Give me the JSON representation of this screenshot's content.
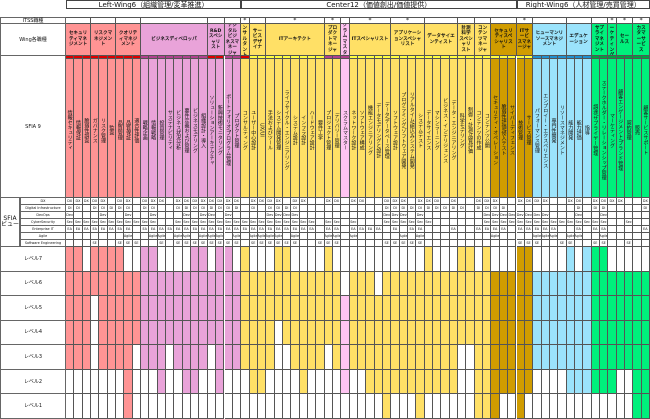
{
  "wings": [
    {
      "label": "Left-Wing6（組織管理/変革推進）",
      "from": 0,
      "to": 21
    },
    {
      "label": "Center12（価値創出/価値提供）",
      "from": 21,
      "to": 54
    },
    {
      "label": "Right-Wing6（人材管理/売買管理）",
      "from": 54,
      "to": 70
    }
  ],
  "row_labels": {
    "itss": "ITSS職種",
    "wing_roles": "Wing各職種",
    "sfia9": "SFIA 9",
    "sfia_view": "SFIA ビュー",
    "levels": [
      "レベル7",
      "レベル6",
      "レベル5",
      "レベル4",
      "レベル3",
      "レベル2",
      "レベル1"
    ]
  },
  "views": [
    {
      "name": "DX",
      "code": "DX"
    },
    {
      "name": "Digital Infrastructure",
      "code": "DI"
    },
    {
      "name": "DevOps",
      "code": "Dev"
    },
    {
      "name": "CyberSecurity",
      "code": "Sec"
    },
    {
      "name": "Enterprise IT",
      "code": "EA"
    },
    {
      "name": "Agile",
      "code": "Agile"
    },
    {
      "name": "Software Engineering",
      "code": "SE"
    }
  ],
  "itss_marker": "*",
  "colors": {
    "red": "#ff9494",
    "pink": "#e9a3d9",
    "yellow": "#ffe066",
    "lightpink": "#ffc4f2",
    "gold": "#d09c00",
    "blue": "#9be3fb",
    "green": "#00f07c",
    "strip_red": "#e00000",
    "strip_yellow": "#ffff40",
    "strip_purple": "#b0408f",
    "strip_blue": "#2090d0",
    "strip_green": "#00a040"
  },
  "groups": [
    {
      "label": "セキュリティマネジメント",
      "cols": 3,
      "color": "red",
      "strip": "strip_red",
      "itss": false
    },
    {
      "label": "リスクマネジメント",
      "cols": 3,
      "color": "red",
      "strip": "strip_red",
      "itss": false
    },
    {
      "label": "クオリティマネジメント",
      "cols": 3,
      "color": "red",
      "strip": "strip_red",
      "itss": false
    },
    {
      "label": "ビジネスディベロッパ",
      "cols": 8,
      "color": "pink",
      "strip": "strip_purple",
      "itss": false
    },
    {
      "label": "R&Dスペシャリスト",
      "cols": 2,
      "color": "pink",
      "strip": "strip_red",
      "itss": false
    },
    {
      "label": "デジタルビジネスマネージャ",
      "cols": 2,
      "color": "pink",
      "strip": "strip_purple",
      "itss": false
    },
    {
      "label": "コンサルタント",
      "cols": 1,
      "color": "yellow",
      "strip": "strip_red",
      "itss": true
    },
    {
      "label": "サービスデザイナ",
      "cols": 2,
      "color": "yellow",
      "strip": "strip_yellow",
      "itss": false
    },
    {
      "label": "ITアーキテクト",
      "cols": 7,
      "color": "yellow",
      "strip": "strip_yellow",
      "itss": true
    },
    {
      "label": "プロダクトマネージャ",
      "cols": 2,
      "color": "yellow",
      "strip": "strip_purple",
      "itss": true
    },
    {
      "label": "スクラムマスター",
      "cols": 1,
      "color": "lightpink",
      "strip": "strip_purple",
      "itss": false
    },
    {
      "label": "ITスペシャリスト",
      "cols": 5,
      "color": "yellow",
      "strip": "strip_yellow",
      "itss": true
    },
    {
      "label": "アプリケーションスペシャリスト",
      "cols": 4,
      "color": "yellow",
      "strip": "strip_yellow",
      "itss": true
    },
    {
      "label": "データサイエンティスト",
      "cols": 4,
      "color": "yellow",
      "strip": "strip_yellow",
      "itss": false
    },
    {
      "label": "計測科学スペシャリスト",
      "cols": 2,
      "color": "yellow",
      "strip": "strip_yellow",
      "itss": false
    },
    {
      "label": "コンテンツマネージャ",
      "cols": 2,
      "color": "yellow",
      "strip": "strip_yellow",
      "itss": false
    },
    {
      "label": "セキュリティスペシャリスト",
      "cols": 3,
      "color": "gold",
      "strip": "strip_yellow",
      "itss": false
    },
    {
      "label": "ITサービスマネージャ",
      "cols": 2,
      "color": "gold",
      "strip": "strip_yellow",
      "itss": true
    },
    {
      "label": "ヒューマンリソースマネジメント",
      "cols": 4,
      "color": "blue",
      "strip": "strip_blue",
      "itss": false
    },
    {
      "label": "エデュケーション",
      "cols": 3,
      "color": "blue",
      "strip": "strip_blue",
      "itss": false
    },
    {
      "label": "サプライマネジメント",
      "cols": 2,
      "color": "green",
      "strip": "strip_green",
      "itss": false
    },
    {
      "label": "マーケティング",
      "cols": 1,
      "color": "green",
      "strip": "strip_green",
      "itss": true
    },
    {
      "label": "セールス",
      "cols": 2,
      "color": "green",
      "strip": "strip_green",
      "itss": true
    },
    {
      "label": "カスタマーサービス",
      "cols": 2,
      "color": "green",
      "strip": "strip_green",
      "itss": true
    }
  ],
  "skills": [
    {
      "name": "情報セキュリティ",
      "levels": [
        3,
        7
      ],
      "views": "1111100"
    },
    {
      "name": "情報保証",
      "levels": [
        3,
        7
      ],
      "views": "1101100"
    },
    {
      "name": "脆弱性調査",
      "levels": [
        3,
        6
      ],
      "views": "1001100"
    },
    {
      "name": "ガバナンス",
      "levels": [
        6,
        7
      ],
      "views": "1101101"
    },
    {
      "name": "リスク管理",
      "levels": [
        3,
        7
      ],
      "views": "1111100"
    },
    {
      "name": "監査",
      "levels": [
        3,
        7
      ],
      "views": "0101100"
    },
    {
      "name": "品質管理",
      "levels": [
        3,
        7
      ],
      "views": "1101101"
    },
    {
      "name": "品質保証",
      "levels": [
        1,
        6
      ],
      "views": "1111111"
    },
    {
      "name": "適合性評価",
      "levels": [
        4,
        6
      ],
      "views": "0001001"
    },
    {
      "name": "戦略企画",
      "levels": [
        3,
        7
      ],
      "views": "1101100"
    },
    {
      "name": "情報戦略",
      "levels": [
        3,
        7
      ],
      "views": "1111110"
    },
    {
      "name": "投資管理",
      "levels": [
        2,
        6
      ],
      "views": "1000111"
    },
    {
      "name": "サステナビリティ",
      "levels": [
        4,
        6
      ],
      "views": "0000100"
    },
    {
      "name": "ビジネス状況分析",
      "levels": [
        3,
        6
      ],
      "views": "1101111"
    },
    {
      "name": "要件定義および管理",
      "levels": [
        2,
        6
      ],
      "views": "1111111"
    },
    {
      "name": "ビジネスモデリング",
      "levels": [
        2,
        7
      ],
      "views": "1101101"
    },
    {
      "name": "組織設計・導入",
      "levels": [
        3,
        7
      ],
      "views": "1111111"
    },
    {
      "name": "ソリューションアーキテクチャ",
      "levels": [
        4,
        6
      ],
      "views": "1111111"
    },
    {
      "name": "新興技術モニタリング",
      "levels": [
        2,
        7
      ],
      "views": "1101111"
    },
    {
      "name": "ポートフォリオ/プログラム管理",
      "levels": [
        3,
        7
      ],
      "views": "1111101"
    },
    {
      "name": "プロダクト管理",
      "levels": [
        3,
        6
      ],
      "views": "1101111"
    },
    {
      "name": "コンサルティング",
      "levels": [
        3,
        7
      ],
      "views": "0001100"
    },
    {
      "name": "ユーザー中心設計",
      "levels": [
        2,
        6
      ],
      "views": "1101111"
    },
    {
      "name": "UX/UI",
      "levels": [
        2,
        6
      ],
      "views": "1001111"
    },
    {
      "name": "手法およびツール",
      "levels": [
        3,
        6
      ],
      "views": "1111111"
    },
    {
      "name": "システム開発管理",
      "levels": [
        5,
        7
      ],
      "views": "1111111"
    },
    {
      "name": "ライフサイクル・エンジニアリング",
      "levels": [
        4,
        7
      ],
      "views": "0111101"
    },
    {
      "name": "システム設計",
      "levels": [
        3,
        6
      ],
      "views": "1111111"
    },
    {
      "name": "インフラ設計",
      "levels": [
        2,
        6
      ],
      "views": "1001100"
    },
    {
      "name": "ハードウェア設計",
      "levels": [
        3,
        6
      ],
      "views": "0001100"
    },
    {
      "name": "要件工学",
      "levels": [
        3,
        6
      ],
      "views": "0000001"
    },
    {
      "name": "プロジェクト管理",
      "levels": [
        4,
        7
      ],
      "views": "1001111"
    },
    {
      "name": "デリバリー管理",
      "levels": [
        3,
        6
      ],
      "views": "1001111"
    },
    {
      "name": "スクラムマスター",
      "levels": [
        2,
        5
      ],
      "views": "0000000"
    },
    {
      "name": "ネットワーク設計",
      "levels": [
        3,
        6
      ],
      "views": "1001110"
    },
    {
      "name": "ソフトウェア構成",
      "levels": [
        3,
        6
      ],
      "views": "1000100"
    },
    {
      "name": "機能エンジニアリング",
      "levels": [
        2,
        6
      ],
      "views": "0000100"
    },
    {
      "name": "データモデリングと設計",
      "levels": [
        2,
        5
      ],
      "views": "0000100"
    },
    {
      "name": "データ/データベース管理",
      "levels": [
        1,
        6
      ],
      "views": "1111001"
    },
    {
      "name": "ソフトウェア設計",
      "levels": [
        2,
        6
      ],
      "views": "1111101"
    },
    {
      "name": "プログラミング/ソフトウェア開発",
      "levels": [
        2,
        6
      ],
      "views": "1111011"
    },
    {
      "name": "リアルタイム/組込みシステム開発",
      "levels": [
        2,
        6
      ],
      "views": "0101101"
    },
    {
      "name": "システムテスト",
      "levels": [
        1,
        6
      ],
      "views": "1111111"
    },
    {
      "name": "データサイエンス",
      "levels": [
        2,
        7
      ],
      "views": "1101000"
    },
    {
      "name": "マシンラーニング",
      "levels": [
        2,
        6
      ],
      "views": "1100000"
    },
    {
      "name": "ビジネス・インテリジェンス",
      "levels": [
        2,
        6
      ],
      "views": "0100000"
    },
    {
      "name": "データ・エンジニアリング",
      "levels": [
        2,
        6
      ],
      "views": "1100100"
    },
    {
      "name": "科学モデリング",
      "levels": [
        4,
        7
      ],
      "views": "0100000"
    },
    {
      "name": "制御・計測/品質評価",
      "levels": [
        4,
        7
      ],
      "views": "0000000"
    },
    {
      "name": "コンテンツの作成",
      "levels": [
        1,
        6
      ],
      "views": "1100100"
    },
    {
      "name": "コンテンツ公開",
      "levels": [
        1,
        7
      ],
      "views": "1111100"
    },
    {
      "name": "セキュリティ・オペレーション",
      "levels": [
        1,
        6
      ],
      "views": "1111110"
    },
    {
      "name": "脆弱性評価/侵入テスト",
      "levels": [
        2,
        6
      ],
      "views": "0111100"
    },
    {
      "name": "サイバーディフェンス",
      "levels": [
        2,
        6
      ],
      "views": "0011000"
    },
    {
      "name": "技術管理",
      "levels": [
        1,
        7
      ],
      "views": "1011101"
    },
    {
      "name": "サービス管理",
      "levels": [
        2,
        7
      ],
      "views": "1011101"
    },
    {
      "name": "パフォーマンス管理",
      "levels": [
        3,
        6
      ],
      "views": "1011111"
    },
    {
      "name": "エンプロイー・エクスペリエンス",
      "levels": [
        3,
        6
      ],
      "views": "1011110"
    },
    {
      "name": "専門性開発",
      "levels": [
        3,
        6
      ],
      "views": "0001110"
    },
    {
      "name": "リソースマネジメント",
      "levels": [
        3,
        6
      ],
      "views": "0001001"
    },
    {
      "name": "能力開発",
      "levels": [
        2,
        7
      ],
      "views": "1001011"
    },
    {
      "name": "能力評価",
      "levels": [
        2,
        6
      ],
      "views": "1111110"
    },
    {
      "name": "指導",
      "levels": [
        2,
        7
      ],
      "views": "0001000"
    },
    {
      "name": "調達/サプライヤー管理",
      "levels": [
        2,
        7
      ],
      "views": "1101101"
    },
    {
      "name": "ステークホルダー・リレーションシップ管理",
      "levels": [
        2,
        7
      ],
      "views": "1111111"
    },
    {
      "name": "マーケティング",
      "levels": [
        2,
        6
      ],
      "views": "1000000"
    },
    {
      "name": "顧客エンゲージメント/ブランド管理",
      "levels": [
        3,
        6
      ],
      "views": "1000000"
    },
    {
      "name": "契約管理",
      "levels": [
        3,
        6
      ],
      "views": "0001001"
    },
    {
      "name": "販売",
      "levels": [
        1,
        6
      ],
      "views": "0000000"
    },
    {
      "name": "顧客サービスサポート",
      "levels": [
        1,
        6
      ],
      "views": "1100100"
    }
  ]
}
